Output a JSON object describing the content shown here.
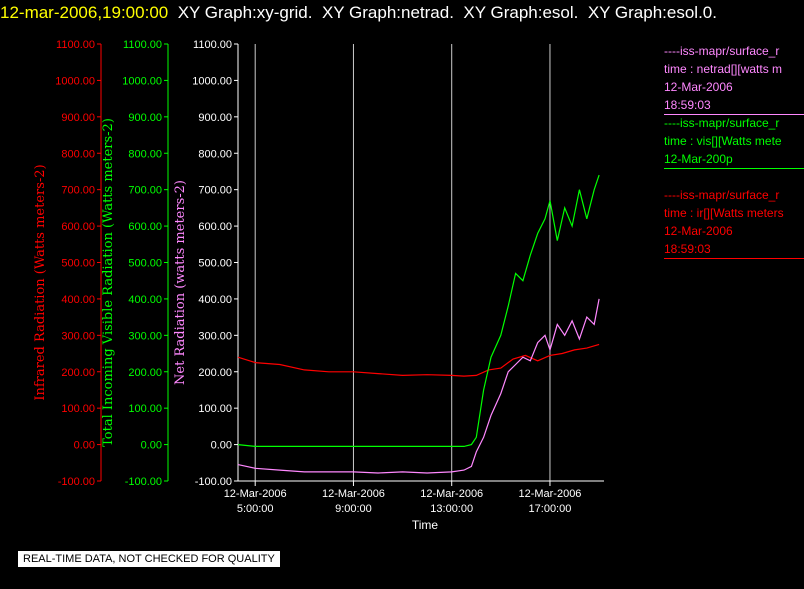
{
  "header": {
    "date": "12-mar-2006,19:00:00",
    "titles": [
      "XY Graph:xy-grid.",
      "XY Graph:netrad.",
      "XY Graph:esol.",
      "XY Graph:esol.0."
    ]
  },
  "legend": [
    {
      "line": "----iss-mapr/surface_r",
      "var": "time : netrad[][watts m",
      "date": "12-Mar-2006",
      "time": "18:59:03",
      "color": "#ff88ff"
    },
    {
      "line": "----iss-mapr/surface_r",
      "var": "time : vis[][Watts mete",
      "date": "12-Mar-200p",
      "time": "",
      "color": "#00ff00"
    },
    {
      "line": "----iss-mapr/surface_r",
      "var": "time : ir[][Watts meters",
      "date": "12-Mar-2006",
      "time": "18:59:03",
      "color": "#ff0000"
    }
  ],
  "qc_note": "REAL-TIME DATA, NOT CHECKED FOR QUALITY",
  "chart_data": {
    "type": "line",
    "xlabel": "Time",
    "x_range_hours": [
      4.3,
      19.2
    ],
    "x_ticks": [
      {
        "hour": 5,
        "date": "12-Mar-2006",
        "time": "5:00:00"
      },
      {
        "hour": 9,
        "date": "12-Mar-2006",
        "time": "9:00:00"
      },
      {
        "hour": 13,
        "date": "12-Mar-2006",
        "time": "13:00:00"
      },
      {
        "hour": 17,
        "date": "12-Mar-2006",
        "time": "17:00:00"
      }
    ],
    "y_range": [
      -100,
      1100
    ],
    "y_ticks": [
      "-100.00",
      "0.00",
      "100.00",
      "200.00",
      "300.00",
      "400.00",
      "500.00",
      "600.00",
      "700.00",
      "800.00",
      "900.00",
      "1000.00",
      "1100.00"
    ],
    "axes": [
      {
        "label": "Infrared Radiation (Watts meters-2)",
        "color": "#ff0000"
      },
      {
        "label": "Total Incoming Visible Radiation (Watts meters-2)",
        "color": "#00ff00"
      },
      {
        "label": "Net Radiation (watts meters-2)",
        "color": "#ff88ff"
      }
    ],
    "series": [
      {
        "color": "#ff0000",
        "x": [
          4.3,
          5,
          6,
          7,
          8,
          9,
          10,
          11,
          12,
          13,
          13.5,
          14,
          14.5,
          15,
          15.5,
          16,
          16.5,
          17,
          17.5,
          18,
          18.5,
          19
        ],
        "y": [
          240,
          225,
          220,
          205,
          200,
          200,
          195,
          190,
          192,
          190,
          188,
          190,
          205,
          210,
          235,
          245,
          230,
          245,
          250,
          260,
          265,
          275
        ]
      },
      {
        "color": "#00ff00",
        "x": [
          4.3,
          5,
          6,
          7,
          8,
          9,
          10,
          11,
          12,
          13,
          13.5,
          13.8,
          14,
          14.3,
          14.6,
          15,
          15.3,
          15.6,
          15.9,
          16.2,
          16.5,
          16.8,
          17,
          17.3,
          17.6,
          17.9,
          18.2,
          18.5,
          18.8,
          19
        ],
        "y": [
          0,
          -5,
          -5,
          -5,
          -5,
          -5,
          -5,
          -5,
          -5,
          -5,
          -5,
          0,
          20,
          150,
          240,
          300,
          380,
          470,
          450,
          520,
          580,
          620,
          670,
          560,
          650,
          600,
          700,
          620,
          700,
          740
        ]
      },
      {
        "color": "#ff88ff",
        "x": [
          4.3,
          5,
          6,
          7,
          8,
          9,
          10,
          11,
          12,
          13,
          13.5,
          13.8,
          14,
          14.3,
          14.6,
          15,
          15.3,
          15.6,
          15.9,
          16.2,
          16.5,
          16.8,
          17,
          17.3,
          17.6,
          17.9,
          18.2,
          18.5,
          18.8,
          19
        ],
        "y": [
          -55,
          -65,
          -70,
          -75,
          -75,
          -75,
          -78,
          -75,
          -78,
          -75,
          -70,
          -60,
          -20,
          20,
          80,
          140,
          200,
          220,
          240,
          230,
          280,
          300,
          260,
          330,
          300,
          340,
          290,
          350,
          330,
          400
        ]
      }
    ]
  }
}
